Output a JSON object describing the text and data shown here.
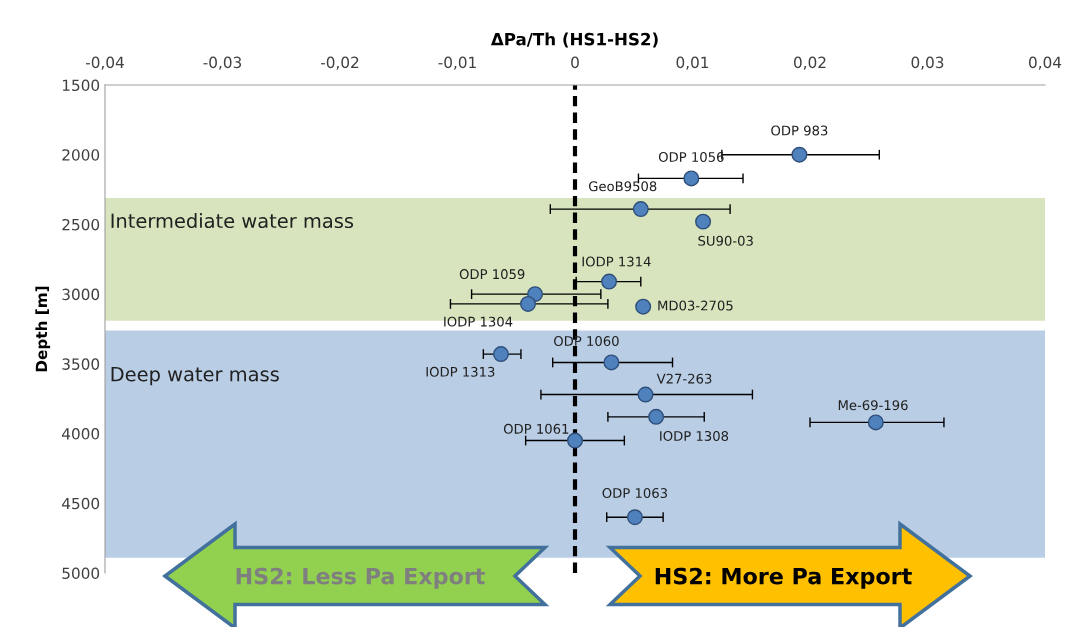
{
  "chart_data": {
    "type": "scatter",
    "xlabel": "ΔPa/Th (HS1-HS2)",
    "ylabel": "Depth [m]",
    "x": [
      0.0191,
      0.0099,
      0.0056,
      0.0109,
      0.0029,
      -0.0034,
      -0.004,
      0.0058,
      -0.0063,
      0.0031,
      0.006,
      0.0069,
      0.0256,
      0.0,
      0.0051
    ],
    "values": [
      2000,
      2170,
      2390,
      2480,
      2910,
      3000,
      3070,
      3090,
      3430,
      3490,
      3720,
      3880,
      3920,
      4050,
      4600
    ],
    "xerrors": [
      [
        0.0125,
        0.0259
      ],
      [
        0.0054,
        0.0143
      ],
      [
        -0.0021,
        0.0132
      ],
      null,
      [
        0.0001,
        0.0056
      ],
      [
        -0.0088,
        0.0022
      ],
      [
        -0.0106,
        0.0028
      ],
      null,
      [
        -0.0078,
        -0.0046
      ],
      [
        -0.0019,
        0.0083
      ],
      [
        -0.0029,
        0.0151
      ],
      [
        0.0028,
        0.011
      ],
      [
        0.02,
        0.0314
      ],
      [
        -0.0042,
        0.0042
      ],
      [
        0.0027,
        0.0075
      ]
    ],
    "color": "#4f81bd",
    "marker": "circle",
    "annotations": [
      {
        "text": "ODP 983",
        "x": 0.0191,
        "y": 2000
      },
      {
        "text": "ODP 1056",
        "x": 0.0099,
        "y": 2170
      },
      {
        "text": "GeoB9508",
        "x": 0.0056,
        "y": 2390
      },
      {
        "text": "SU90-03",
        "x": 0.0109,
        "y": 2480
      },
      {
        "text": "IODP 1314",
        "x": 0.0029,
        "y": 2910
      },
      {
        "text": "ODP 1059",
        "x": -0.0034,
        "y": 3000
      },
      {
        "text": "IODP 1304",
        "x": -0.004,
        "y": 3070
      },
      {
        "text": "MD03-2705",
        "x": 0.0058,
        "y": 3090
      },
      {
        "text": "IODP 1313",
        "x": -0.0063,
        "y": 3430
      },
      {
        "text": "ODP 1060",
        "x": 0.0031,
        "y": 3490
      },
      {
        "text": "V27-263",
        "x": 0.006,
        "y": 3720
      },
      {
        "text": "IODP 1308",
        "x": 0.0069,
        "y": 3880
      },
      {
        "text": "Me-69-196",
        "x": 0.0256,
        "y": 3920
      },
      {
        "text": "ODP 1061",
        "x": 0.0,
        "y": 4050
      },
      {
        "text": "ODP 1063",
        "x": 0.0051,
        "y": 4600
      },
      "HS2: Less Pa Export",
      "HS2: More Pa Export"
    ],
    "bands": [
      {
        "axis": "y",
        "from": 2310,
        "to": 3190,
        "label": "Intermediate water mass",
        "color": "#d7e4bd"
      },
      {
        "axis": "y",
        "from": 3260,
        "to": 4890,
        "label": "Deep water mass",
        "color": "#b9cde5"
      }
    ],
    "ref_lines": [
      {
        "axis": "x",
        "value": 0,
        "color": "#000000",
        "line_style": "dashed"
      }
    ],
    "xlim": [
      -0.04,
      0.04
    ],
    "xticks": [
      {
        "value": -0.04,
        "label": "-0,04"
      },
      {
        "value": -0.03,
        "label": "-0,03"
      },
      {
        "value": -0.02,
        "label": "-0,02"
      },
      {
        "value": -0.01,
        "label": "-0,01"
      },
      0,
      {
        "value": 0.01,
        "label": "0,01"
      },
      {
        "value": 0.02,
        "label": "0,02"
      },
      {
        "value": 0.03,
        "label": "0,03"
      },
      {
        "value": 0.04,
        "label": "0,04"
      }
    ],
    "ylim": [
      5000,
      1500
    ],
    "yticks": [
      1500,
      2000,
      2500,
      3000,
      3500,
      4000,
      4500,
      5000
    ],
    "grid": false,
    "legend": false
  }
}
